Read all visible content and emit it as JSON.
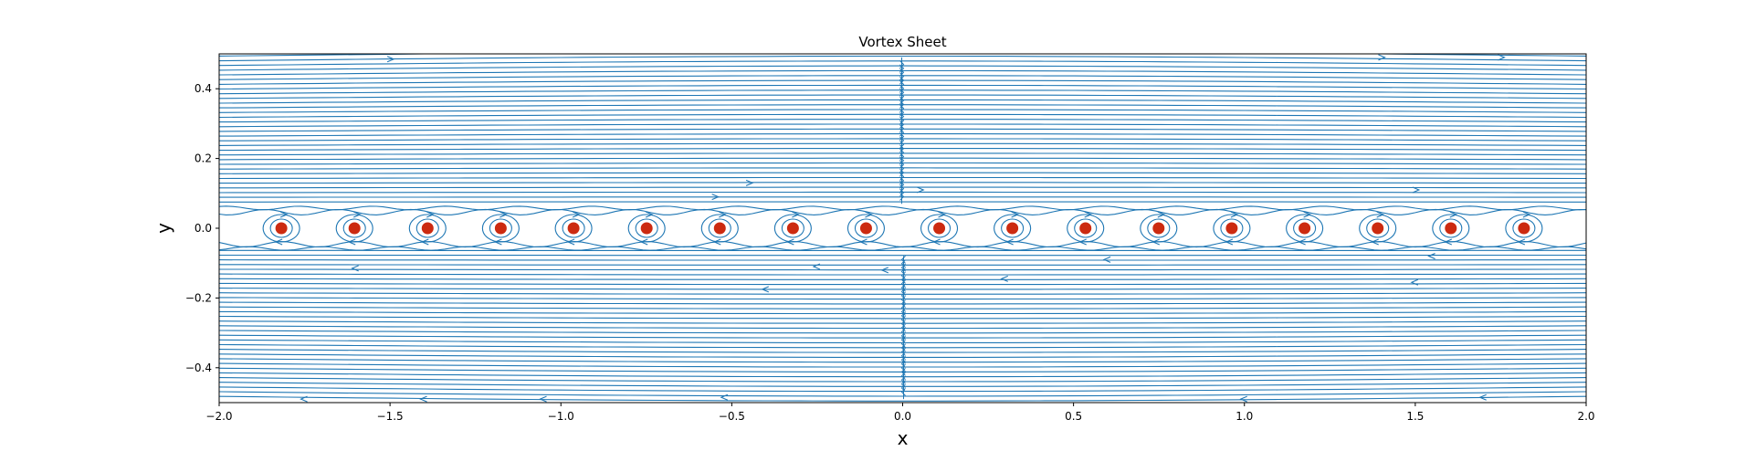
{
  "chart_data": {
    "type": "streamplot",
    "title": "Vortex Sheet",
    "xlabel": "x",
    "ylabel": "y",
    "xlim": [
      -2.0,
      2.0
    ],
    "ylim": [
      -0.5,
      0.5
    ],
    "x_ticks": [
      -2.0,
      -1.5,
      -1.0,
      -0.5,
      0.0,
      0.5,
      1.0,
      1.5,
      2.0
    ],
    "x_tick_labels": [
      "−2.0",
      "−1.5",
      "−1.0",
      "−0.5",
      "0.0",
      "0.5",
      "1.0",
      "1.5",
      "2.0"
    ],
    "y_ticks": [
      -0.4,
      -0.2,
      0.0,
      0.2,
      0.4
    ],
    "y_tick_labels": [
      "−0.4",
      "−0.2",
      "0.0",
      "0.2",
      "0.4"
    ],
    "grid": false,
    "stream_color": "#1f77b4",
    "vortex_color": "#cc2a10",
    "vortices": {
      "x": [
        -1.818,
        -1.604,
        -1.39,
        -1.176,
        -0.963,
        -0.749,
        -0.535,
        -0.321,
        -0.107,
        0.107,
        0.321,
        0.535,
        0.749,
        0.963,
        1.176,
        1.39,
        1.604,
        1.818
      ],
      "y": [
        0,
        0,
        0,
        0,
        0,
        0,
        0,
        0,
        0,
        0,
        0,
        0,
        0,
        0,
        0,
        0,
        0,
        0
      ]
    },
    "flow": {
      "above_sheet_direction": "right",
      "below_sheet_direction": "left"
    }
  }
}
